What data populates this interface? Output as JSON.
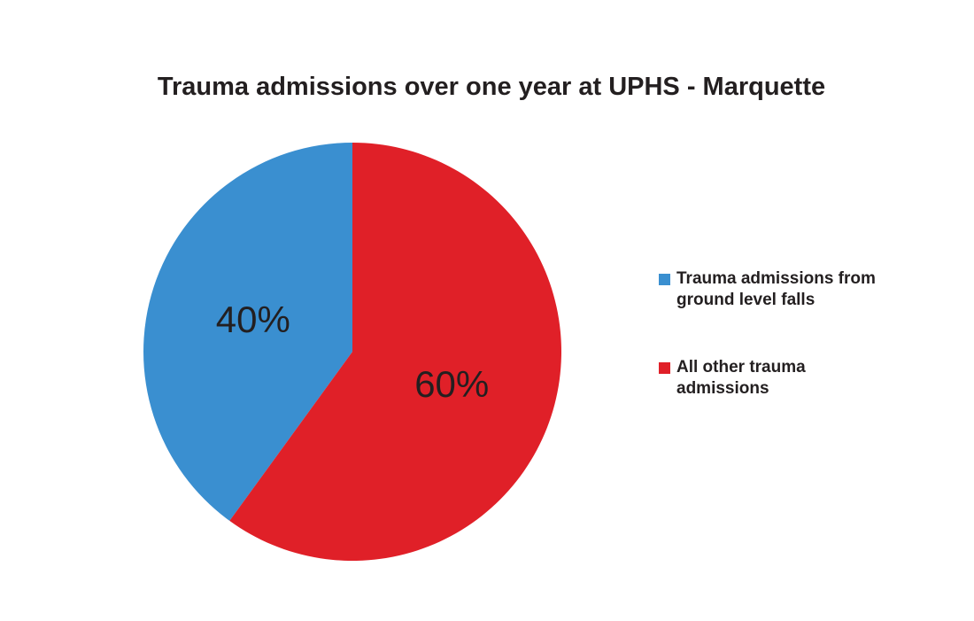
{
  "chart_data": {
    "type": "pie",
    "title": "Trauma admissions over one year at UPHS - Marquette",
    "slices": [
      {
        "label": "Trauma admissions from ground level falls",
        "value": 40,
        "data_label": "40%",
        "color": "#3a8fd0"
      },
      {
        "label": "All other trauma admissions",
        "value": 60,
        "data_label": "60%",
        "color": "#e02028"
      }
    ],
    "legend": {
      "placement": "right",
      "items": [
        {
          "text": "Trauma admissions from ground level falls",
          "color": "#3a8fd0"
        },
        {
          "text": "All other trauma admissions",
          "color": "#e02028"
        }
      ]
    }
  }
}
